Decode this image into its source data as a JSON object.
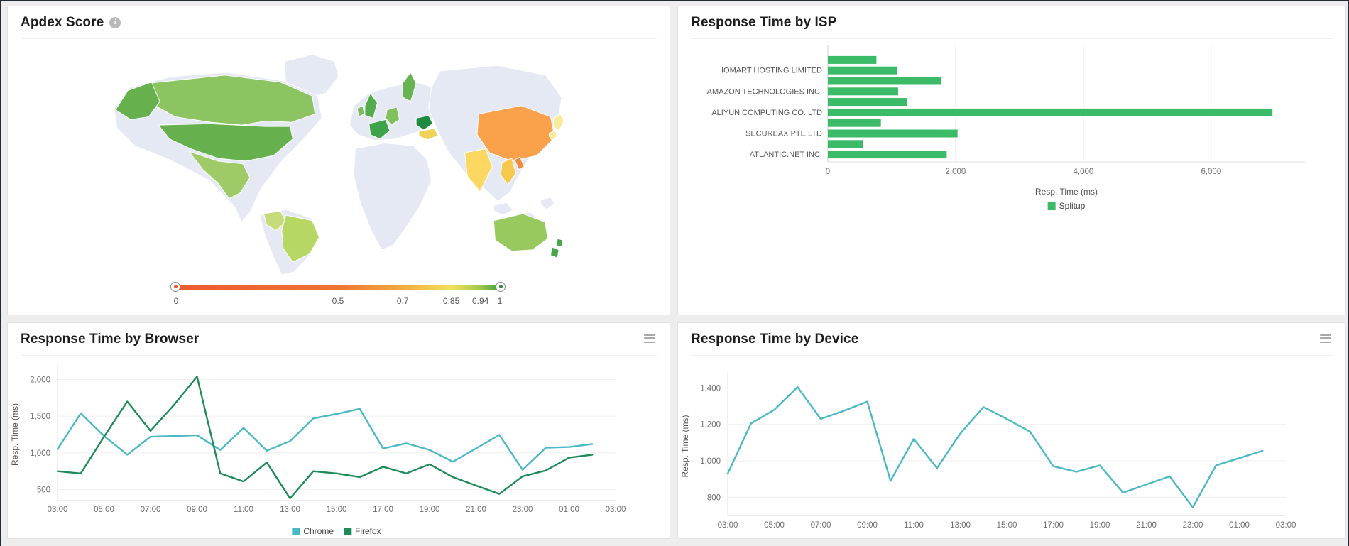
{
  "page": {
    "bg_color": "#ededed",
    "frame_color": "#222b36"
  },
  "cards": {
    "apdex": {
      "title": "Apdex Score",
      "info_icon": "i"
    },
    "isp": {
      "title": "Response Time by ISP"
    },
    "browser": {
      "title": "Response Time by Browser"
    },
    "device": {
      "title": "Response Time by Device"
    }
  },
  "apdex_scale": {
    "labels": [
      {
        "label": "0",
        "pos": 0
      },
      {
        "label": "0.5",
        "pos": 50
      },
      {
        "label": "0.7",
        "pos": 70
      },
      {
        "label": "0.85",
        "pos": 85
      },
      {
        "label": "0.94",
        "pos": 94
      },
      {
        "label": "1",
        "pos": 100
      }
    ],
    "stops": [
      {
        "pos": 0,
        "color": "#ed5a31"
      },
      {
        "pos": 50,
        "color": "#ee7434"
      },
      {
        "pos": 70,
        "color": "#f4ab40"
      },
      {
        "pos": 85,
        "color": "#f2e05b"
      },
      {
        "pos": 94,
        "color": "#9fc94c"
      },
      {
        "pos": 100,
        "color": "#41a03d"
      }
    ]
  },
  "apdex_map": {
    "land_color": "#e4e9f3",
    "countries": [
      {
        "id": "canada",
        "name": "Canada",
        "color": "#8cc462"
      },
      {
        "id": "alaska",
        "name": "Alaska (US)",
        "color": "#66b04e"
      },
      {
        "id": "usa",
        "name": "United States",
        "color": "#66b04e"
      },
      {
        "id": "mexico",
        "name": "Mexico",
        "color": "#9ecb68"
      },
      {
        "id": "colombia",
        "name": "Colombia",
        "color": "#c6dc7a"
      },
      {
        "id": "brazil",
        "name": "Brazil",
        "color": "#b7d765"
      },
      {
        "id": "uk",
        "name": "United Kingdom",
        "color": "#54ab4b"
      },
      {
        "id": "ireland",
        "name": "Ireland",
        "color": "#7bbd5d"
      },
      {
        "id": "france",
        "name": "France",
        "color": "#3fa34b"
      },
      {
        "id": "germany",
        "name": "Germany",
        "color": "#82c25c"
      },
      {
        "id": "sweden",
        "name": "Sweden",
        "color": "#68b351"
      },
      {
        "id": "romania",
        "name": "Romania",
        "color": "#1d8a3f"
      },
      {
        "id": "bulgaria",
        "name": "Bulgaria",
        "color": "#f0d259"
      },
      {
        "id": "china",
        "name": "China",
        "color": "#f9a14b"
      },
      {
        "id": "india",
        "name": "India",
        "color": "#fcd863"
      },
      {
        "id": "japan",
        "name": "Japan",
        "color": "#f8ec9a"
      },
      {
        "id": "thailand",
        "name": "Thailand",
        "color": "#f6c94e"
      },
      {
        "id": "vietnam",
        "name": "Vietnam",
        "color": "#f08a3c"
      },
      {
        "id": "australia",
        "name": "Australia",
        "color": "#97c95f"
      },
      {
        "id": "newzealand",
        "name": "New Zealand",
        "color": "#4aa64c"
      }
    ]
  },
  "chart_data": [
    {
      "id": "isp",
      "type": "bar",
      "orientation": "horizontal",
      "title": "Response Time by ISP",
      "categories": [
        "",
        "IOMART HOSTING LIMITED",
        "",
        "AMAZON TECHNOLOGIES INC.",
        "",
        "ALIYUN COMPUTING CO. LTD",
        "",
        "SECUREAX PTE LTD",
        "",
        "ATLANTIC.NET INC."
      ],
      "values": [
        760,
        1080,
        1780,
        1100,
        1240,
        6960,
        830,
        2030,
        550,
        1860
      ],
      "bar_color": "#3bba68",
      "xlabel": "Resp. Time (ms)",
      "xlim": [
        0,
        7480
      ],
      "xticks": [
        0,
        2000,
        4000,
        6000
      ],
      "legend": [
        {
          "label": "Splitup",
          "color": "#3bba68"
        }
      ]
    },
    {
      "id": "browser",
      "type": "line",
      "title": "Response Time by Browser",
      "x": [
        "03:00",
        "04:00",
        "05:00",
        "06:00",
        "07:00",
        "08:00",
        "09:00",
        "10:00",
        "11:00",
        "12:00",
        "13:00",
        "14:00",
        "15:00",
        "16:00",
        "17:00",
        "18:00",
        "19:00",
        "20:00",
        "21:00",
        "22:00",
        "23:00",
        "00:00",
        "01:00",
        "02:00"
      ],
      "xticks": [
        "03:00",
        "05:00",
        "07:00",
        "09:00",
        "11:00",
        "13:00",
        "15:00",
        "17:00",
        "19:00",
        "21:00",
        "23:00",
        "01:00",
        "03:00"
      ],
      "ylabel": "Resp. Time (ms)",
      "ylim": [
        350,
        2150
      ],
      "yticks": [
        500,
        1000,
        1500,
        2000
      ],
      "series": [
        {
          "name": "Chrome",
          "color": "#4bb8c5",
          "values": [
            1050,
            1540,
            1230,
            975,
            1220,
            1230,
            1240,
            1040,
            1340,
            1030,
            1160,
            1470,
            1530,
            1600,
            1060,
            1130,
            1040,
            880,
            1060,
            1245,
            770,
            1070,
            1080,
            1120
          ]
        },
        {
          "name": "Firefox",
          "color": "#1d8b57",
          "values": [
            750,
            720,
            1220,
            1700,
            1300,
            1650,
            2040,
            720,
            610,
            870,
            380,
            750,
            720,
            670,
            810,
            720,
            845,
            670,
            555,
            440,
            680,
            760,
            935,
            975
          ]
        }
      ]
    },
    {
      "id": "device",
      "type": "line",
      "title": "Response Time by Device",
      "x": [
        "03:00",
        "04:00",
        "05:00",
        "06:00",
        "07:00",
        "08:00",
        "09:00",
        "10:00",
        "11:00",
        "12:00",
        "13:00",
        "14:00",
        "15:00",
        "16:00",
        "17:00",
        "18:00",
        "19:00",
        "20:00",
        "21:00",
        "22:00",
        "23:00",
        "00:00",
        "01:00",
        "02:00"
      ],
      "xticks": [
        "03:00",
        "05:00",
        "07:00",
        "09:00",
        "11:00",
        "13:00",
        "15:00",
        "17:00",
        "19:00",
        "21:00",
        "23:00",
        "01:00",
        "03:00"
      ],
      "ylabel": "Resp. Time (ms)",
      "ylim": [
        700,
        1460
      ],
      "yticks": [
        800,
        1000,
        1200,
        1400
      ],
      "series": [
        {
          "name": "",
          "color": "#4bb8c5",
          "values": [
            930,
            1205,
            1280,
            1405,
            1230,
            1275,
            1325,
            890,
            1120,
            960,
            1150,
            1295,
            1230,
            1160,
            970,
            940,
            975,
            825,
            870,
            915,
            745,
            975,
            1015,
            1055
          ]
        }
      ]
    }
  ]
}
